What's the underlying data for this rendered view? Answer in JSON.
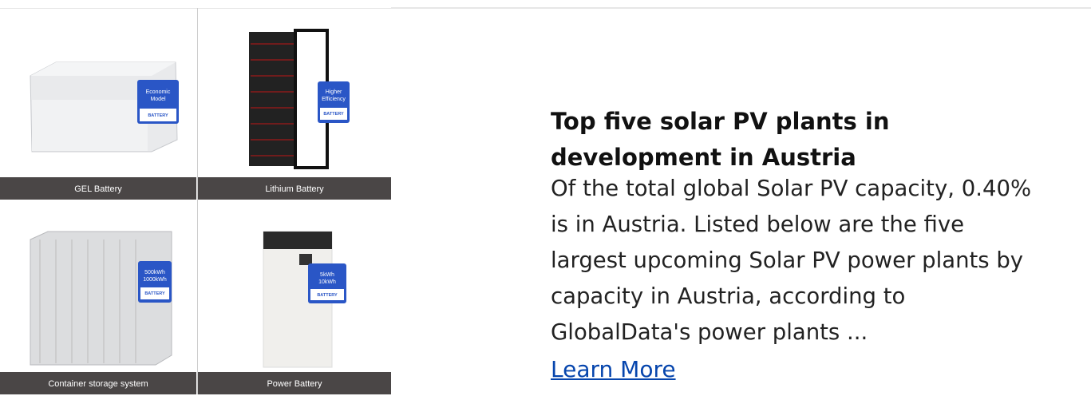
{
  "products": [
    {
      "caption": "GEL Battery",
      "badge": [
        "Economic",
        "Model"
      ],
      "tag": "BATTERY"
    },
    {
      "caption": "Lithium Battery",
      "badge": [
        "Higher",
        "Efficiency"
      ],
      "tag": "BATTERY"
    },
    {
      "caption": "Container storage system",
      "badge": [
        "500kWh",
        "1000kWh"
      ],
      "tag": "BATTERY"
    },
    {
      "caption": "Power Battery",
      "badge": [
        "5kWh",
        "10kWh"
      ],
      "tag": "BATTERY"
    }
  ],
  "article": {
    "title": "Top five solar PV plants in development in Austria",
    "body": "Of the total global Solar PV capacity, 0.40% is in Austria. Listed below are the five largest upcoming Solar PV power plants by capacity in Austria, according to GlobalData's power plants ...",
    "link": "Learn More"
  }
}
